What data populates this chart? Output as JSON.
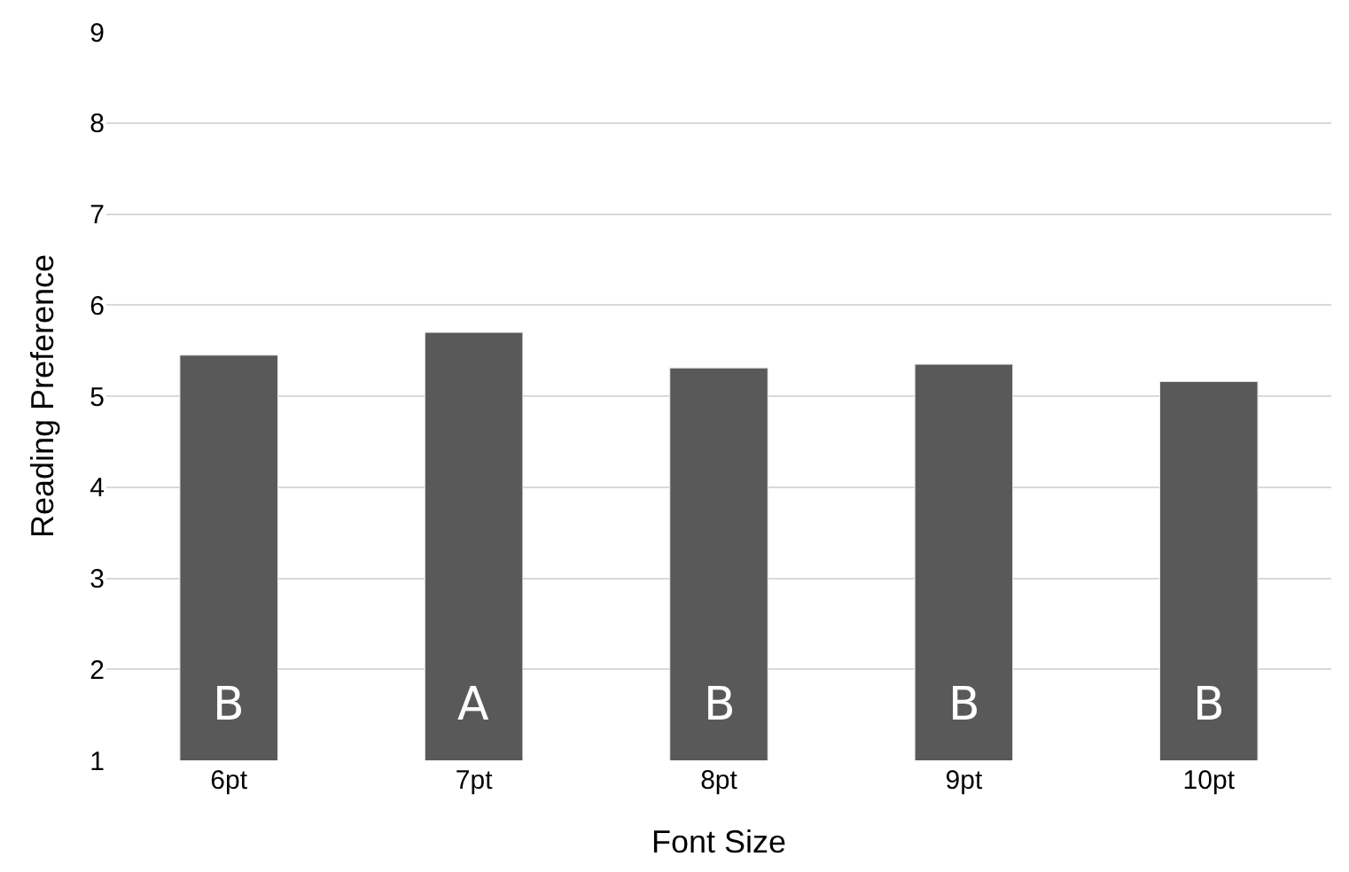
{
  "chart_data": {
    "type": "bar",
    "xlabel": "Font Size",
    "ylabel": "Reading Preference",
    "categories": [
      "6pt",
      "7pt",
      "8pt",
      "9pt",
      "10pt"
    ],
    "values": [
      5.45,
      5.7,
      5.31,
      5.35,
      5.16
    ],
    "color": "#595959",
    "ylim": [
      1,
      9
    ],
    "yticks": [
      1,
      2,
      3,
      4,
      5,
      6,
      7,
      8,
      9
    ],
    "grid": "y",
    "annotations": [
      "B",
      "A",
      "B",
      "B",
      "B"
    ]
  }
}
